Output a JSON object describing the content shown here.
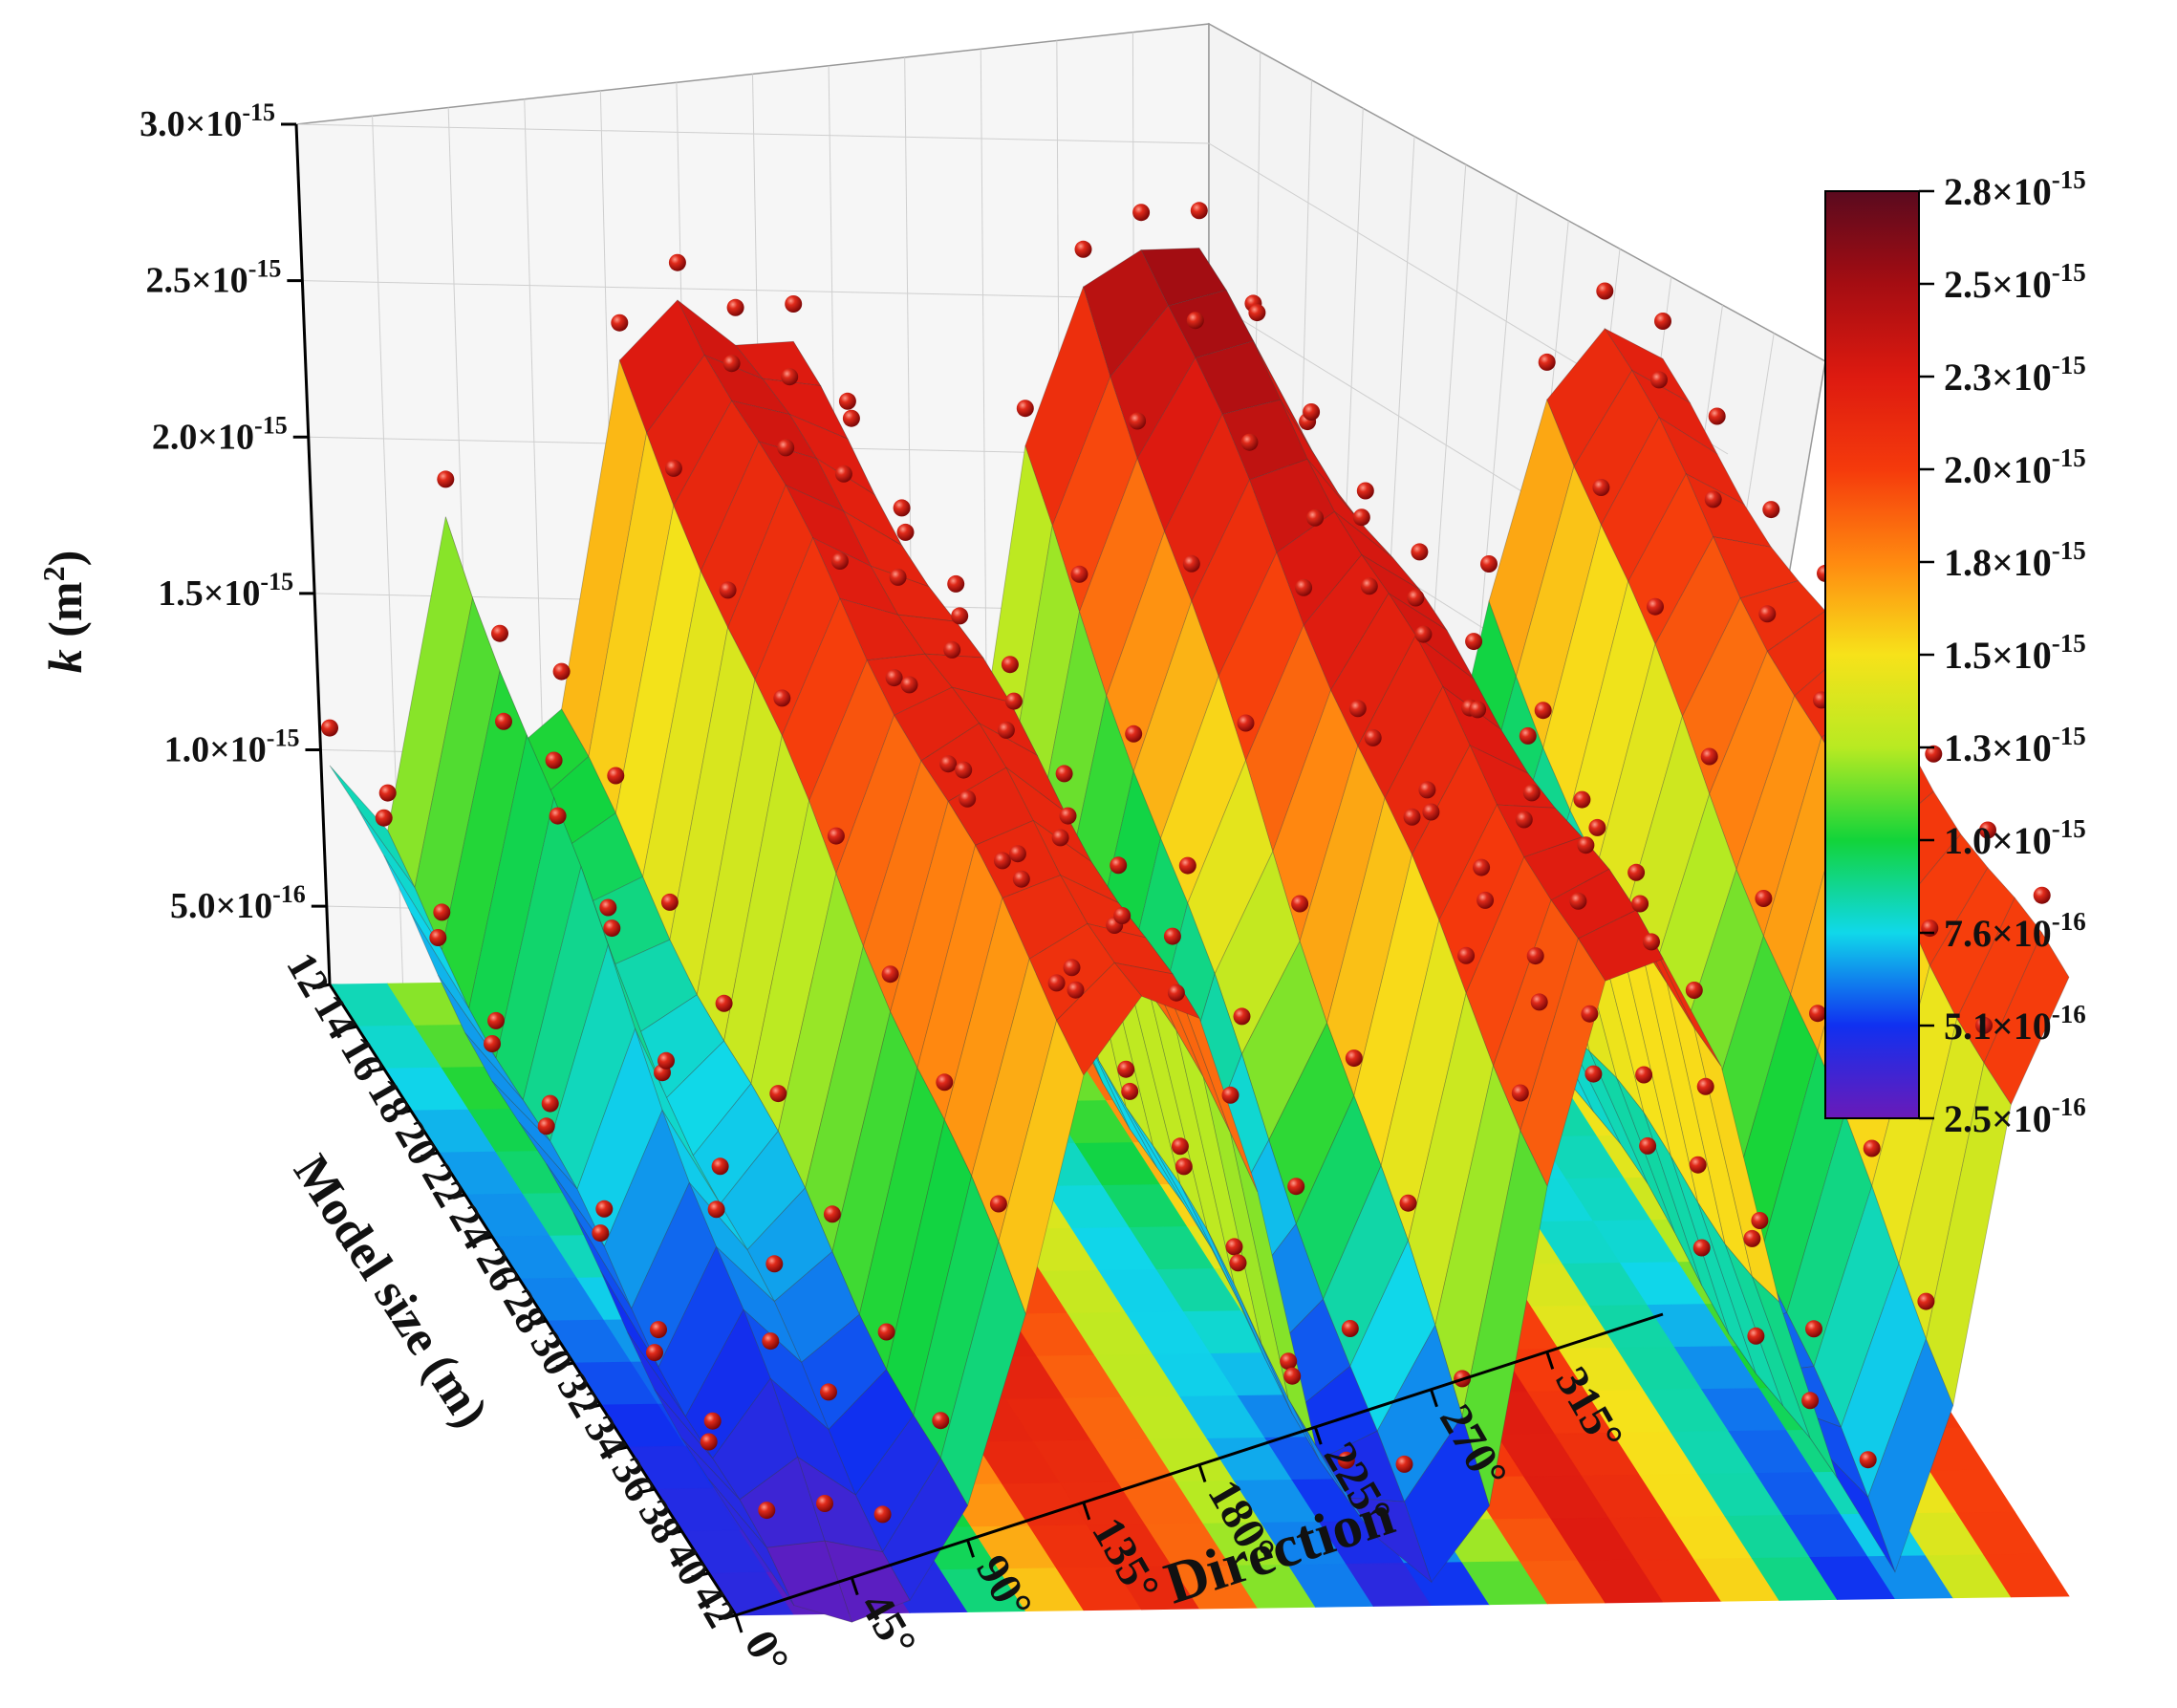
{
  "chart_data": {
    "type": "surface3d",
    "zlabel": "k (m²)",
    "zlabel_parts": {
      "symbol": "k",
      "unit": "(m",
      "exp": "2",
      "close": ")"
    },
    "xlabel": "Direction",
    "ylabel": "Model size (m)",
    "z_ticks": [
      {
        "mant": "3.0",
        "exp": "-15",
        "value": 3e-15
      },
      {
        "mant": "2.5",
        "exp": "-15",
        "value": 2.5e-15
      },
      {
        "mant": "2.0",
        "exp": "-15",
        "value": 2e-15
      },
      {
        "mant": "1.5",
        "exp": "-15",
        "value": 1.5e-15
      },
      {
        "mant": "1.0",
        "exp": "-15",
        "value": 1e-15
      },
      {
        "mant": "5.0",
        "exp": "-16",
        "value": 5e-16
      }
    ],
    "x_ticks": [
      "0°",
      "45°",
      "90°",
      "135°",
      "180°",
      "225°",
      "270°",
      "315°"
    ],
    "y_ticks": [
      "12",
      "14",
      "16",
      "18",
      "20",
      "22",
      "24",
      "26",
      "28",
      "30",
      "32",
      "34",
      "36",
      "38",
      "40",
      "42"
    ],
    "colorbar": {
      "labels": [
        {
          "mant": "2.8",
          "exp": "-15"
        },
        {
          "mant": "2.5",
          "exp": "-15"
        },
        {
          "mant": "2.3",
          "exp": "-15"
        },
        {
          "mant": "2.0",
          "exp": "-15"
        },
        {
          "mant": "1.8",
          "exp": "-15"
        },
        {
          "mant": "1.5",
          "exp": "-15"
        },
        {
          "mant": "1.3",
          "exp": "-15"
        },
        {
          "mant": "1.0",
          "exp": "-15"
        },
        {
          "mant": "7.6",
          "exp": "-16"
        },
        {
          "mant": "5.1",
          "exp": "-16"
        },
        {
          "mant": "2.5",
          "exp": "-16"
        }
      ],
      "colors": [
        "#5a0a1e",
        "#a50d12",
        "#dd1a10",
        "#f53a0c",
        "#ff8a10",
        "#f7e21a",
        "#b8ea22",
        "#12d43a",
        "#10d8ea",
        "#1030f0",
        "#6a1ab8"
      ]
    },
    "direction_deg": [
      0,
      15,
      30,
      45,
      60,
      75,
      90,
      105,
      120,
      135,
      150,
      165,
      180,
      195,
      210,
      225,
      240,
      255,
      270,
      285,
      300,
      315,
      330,
      345
    ],
    "k_at_size_12": [
      9.5e-16,
      7e-16,
      1.75e-15,
      1e-15,
      1.1e-15,
      2.2e-15,
      2.45e-15,
      2.3e-15,
      2.25e-15,
      1.9e-15,
      1.1e-15,
      7e-16,
      1.9e-15,
      2.45e-15,
      2.6e-15,
      2.55e-15,
      2.2e-15,
      1.6e-15,
      9e-16,
      6e-16,
      1.4e-15,
      2.1e-15,
      2.3e-15,
      2.15e-15
    ],
    "k_at_size_42": [
      5.2e-16,
      2.6e-16,
      2.6e-16,
      3e-16,
      5.5e-16,
      1.2e-15,
      2e-15,
      2.2e-15,
      2.1e-15,
      1.6e-15,
      8e-16,
      4.5e-16,
      3e-16,
      6e-16,
      1.6e-15,
      2.2e-15,
      2.3e-15,
      2e-15,
      1.2e-15,
      6e-16,
      3.5e-16,
      9e-16,
      1.8e-15,
      2.2e-15
    ],
    "grid": true,
    "colorbar_position": "right",
    "scatter_points_color": "#c81414"
  }
}
